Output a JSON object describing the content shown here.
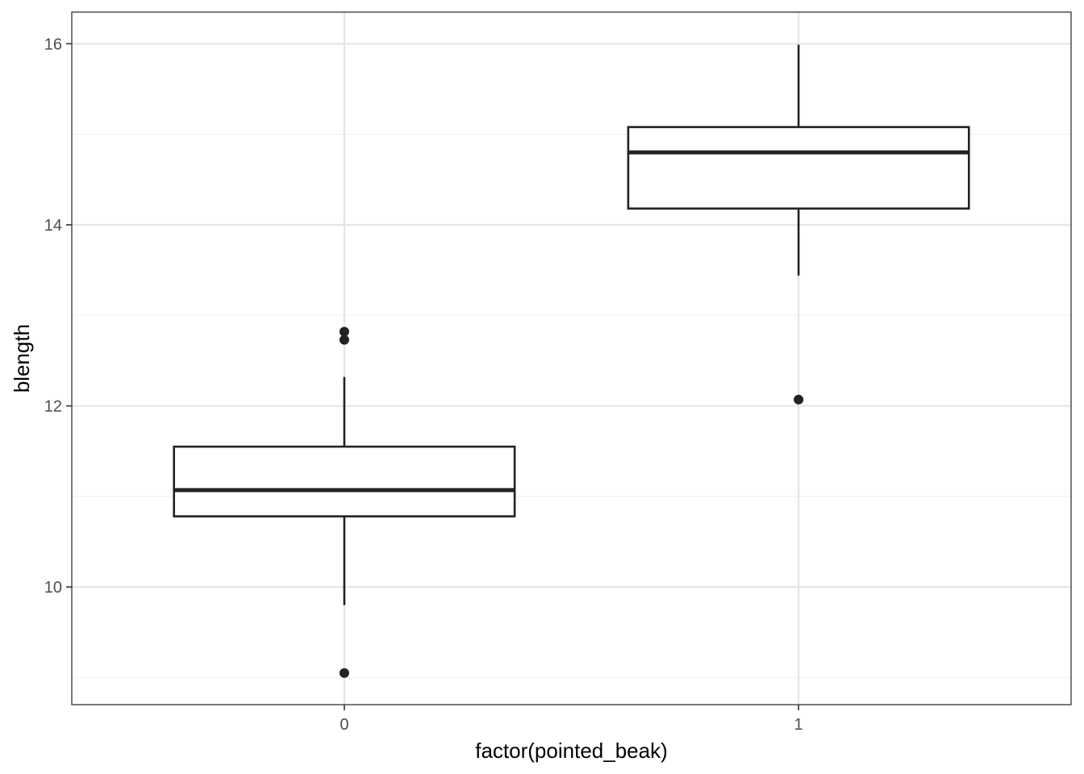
{
  "chart_data": {
    "type": "boxplot",
    "xlabel": "factor(pointed_beak)",
    "ylabel": "blength",
    "categories": [
      "0",
      "1"
    ],
    "ylim": [
      8.7,
      16.35
    ],
    "yticks": [
      10,
      12,
      14,
      16
    ],
    "y_minor_ticks": [
      9,
      11,
      13,
      15
    ],
    "grid": true,
    "boxes": [
      {
        "category": "0",
        "whisker_low": 9.8,
        "q1": 10.78,
        "median": 11.07,
        "q3": 11.55,
        "whisker_high": 12.32,
        "outliers": [
          12.82,
          12.73,
          9.05
        ]
      },
      {
        "category": "1",
        "whisker_low": 13.44,
        "q1": 14.18,
        "median": 14.8,
        "q3": 15.08,
        "whisker_high": 15.99,
        "outliers": [
          12.07
        ]
      }
    ],
    "colors": {
      "box_stroke": "#222222",
      "box_fill": "#ffffff",
      "grid_major": "#e5e5e5",
      "grid_minor": "#f0f0f0",
      "panel_border": "#333333"
    }
  }
}
